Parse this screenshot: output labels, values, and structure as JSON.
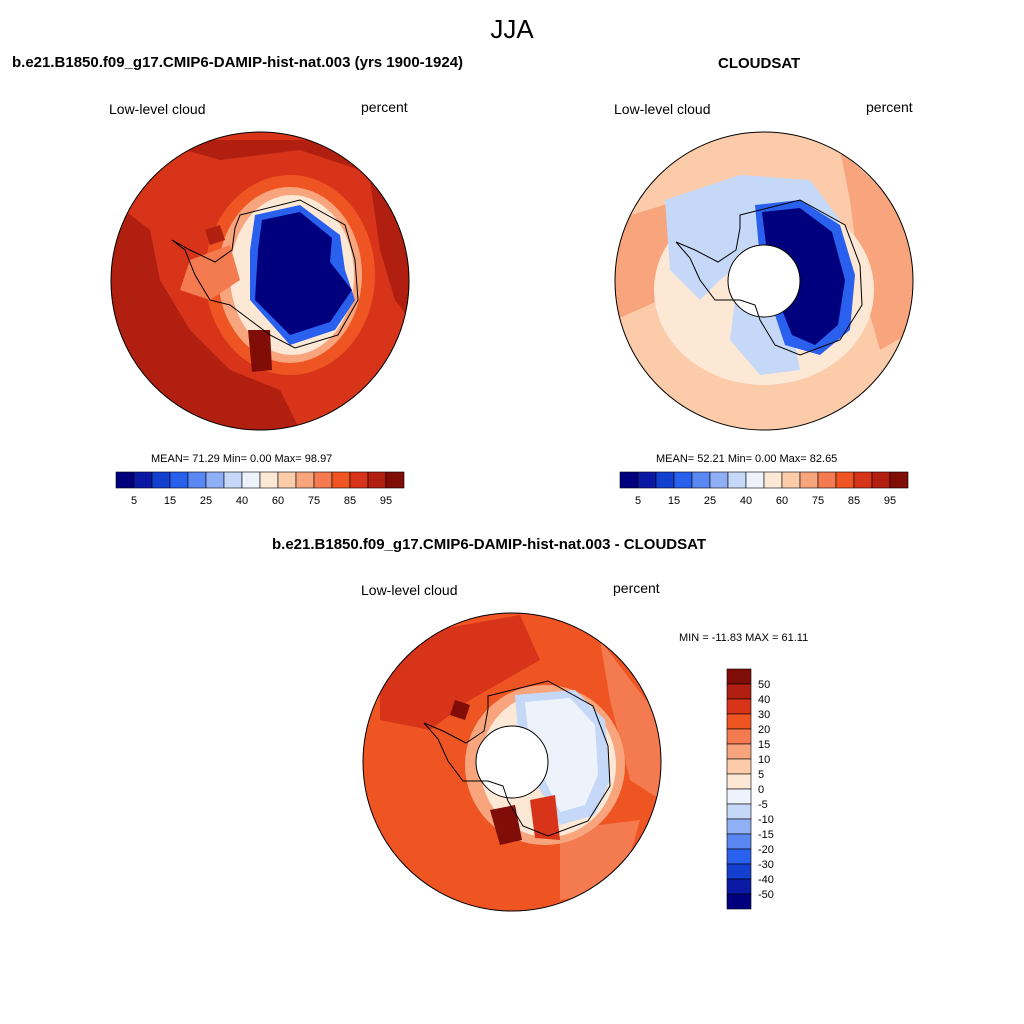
{
  "season": "JJA",
  "panels": {
    "model": {
      "title": "b.e21.B1850.f09_g17.CMIP6-DAMIP-hist-nat.003 (yrs 1900-1924)",
      "left_label": "Low-level cloud",
      "right_label": "percent",
      "stats": "MEAN=  71.29  Min=   0.00  Max=  98.97"
    },
    "obs": {
      "title": "CLOUDSAT",
      "left_label": "Low-level cloud",
      "right_label": "percent",
      "stats": "MEAN=  52.21  Min=   0.00  Max=  82.65"
    },
    "diff": {
      "title": "b.e21.B1850.f09_g17.CMIP6-DAMIP-hist-nat.003 - CLOUDSAT",
      "left_label": "Low-level cloud",
      "right_label": "percent",
      "stats": "MIN = -11.83 MAX =  61.11"
    }
  },
  "colorbar_abs": {
    "colors": [
      "#00007f",
      "#0a1aa5",
      "#1340cf",
      "#2a60ee",
      "#5a88f2",
      "#8fb0f4",
      "#c6d8f8",
      "#eef3fb",
      "#fde8d6",
      "#fbcbaa",
      "#f8a57e",
      "#f47a50",
      "#ef5523",
      "#d8341a",
      "#b01f10",
      "#800d08"
    ],
    "tick_labels": [
      "5",
      "15",
      "25",
      "40",
      "60",
      "75",
      "85",
      "95"
    ]
  },
  "colorbar_diff": {
    "colors": [
      "#800d08",
      "#b01f10",
      "#d8341a",
      "#ef5523",
      "#f47a50",
      "#f8a57e",
      "#fbcbaa",
      "#fde8d6",
      "#eef3fb",
      "#c6d8f8",
      "#8fb0f4",
      "#5a88f2",
      "#2a60ee",
      "#1340cf",
      "#0a1aa5",
      "#00007f"
    ],
    "tick_labels": [
      "50",
      "40",
      "30",
      "20",
      "15",
      "10",
      "5",
      "0",
      "-5",
      "-10",
      "-15",
      "-20",
      "-30",
      "-40",
      "-50"
    ]
  }
}
